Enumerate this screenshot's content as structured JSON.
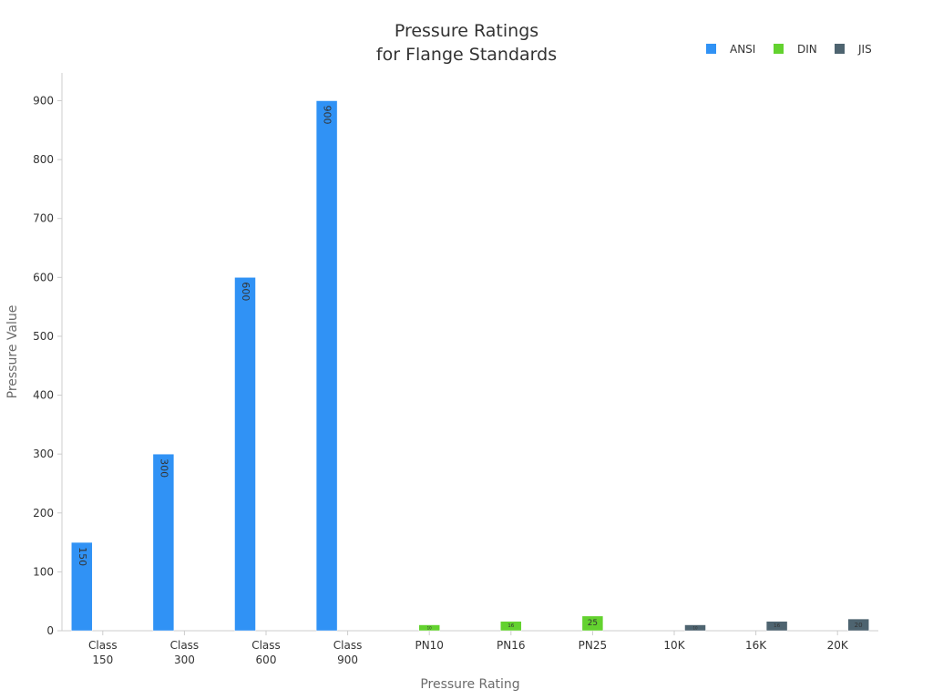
{
  "chart_data": {
    "type": "bar",
    "title": [
      "Pressure Ratings",
      "for Flange Standards"
    ],
    "xlabel": "Pressure Rating",
    "ylabel": "Pressure Value",
    "categories": [
      [
        "Class",
        "150"
      ],
      [
        "Class",
        "300"
      ],
      [
        "Class",
        "600"
      ],
      [
        "Class",
        "900"
      ],
      [
        "PN10"
      ],
      [
        "PN16"
      ],
      [
        "PN25"
      ],
      [
        "10K"
      ],
      [
        "16K"
      ],
      [
        "20K"
      ]
    ],
    "series": [
      {
        "name": "ANSI",
        "color": "#3092f5",
        "values": [
          150,
          300,
          600,
          900,
          null,
          null,
          null,
          null,
          null,
          null
        ]
      },
      {
        "name": "DIN",
        "color": "#63d22f",
        "values": [
          null,
          null,
          null,
          null,
          10,
          16,
          25,
          null,
          null,
          null
        ]
      },
      {
        "name": "JIS",
        "color": "#4e6470",
        "values": [
          null,
          null,
          null,
          null,
          null,
          null,
          null,
          10,
          16,
          20
        ]
      }
    ],
    "ylim": [
      0,
      950
    ],
    "yticks": [
      0,
      100,
      200,
      300,
      400,
      500,
      600,
      700,
      800,
      900
    ],
    "grid": false,
    "legend_position": "top-right",
    "data_labels": "inside-end, rotated"
  }
}
